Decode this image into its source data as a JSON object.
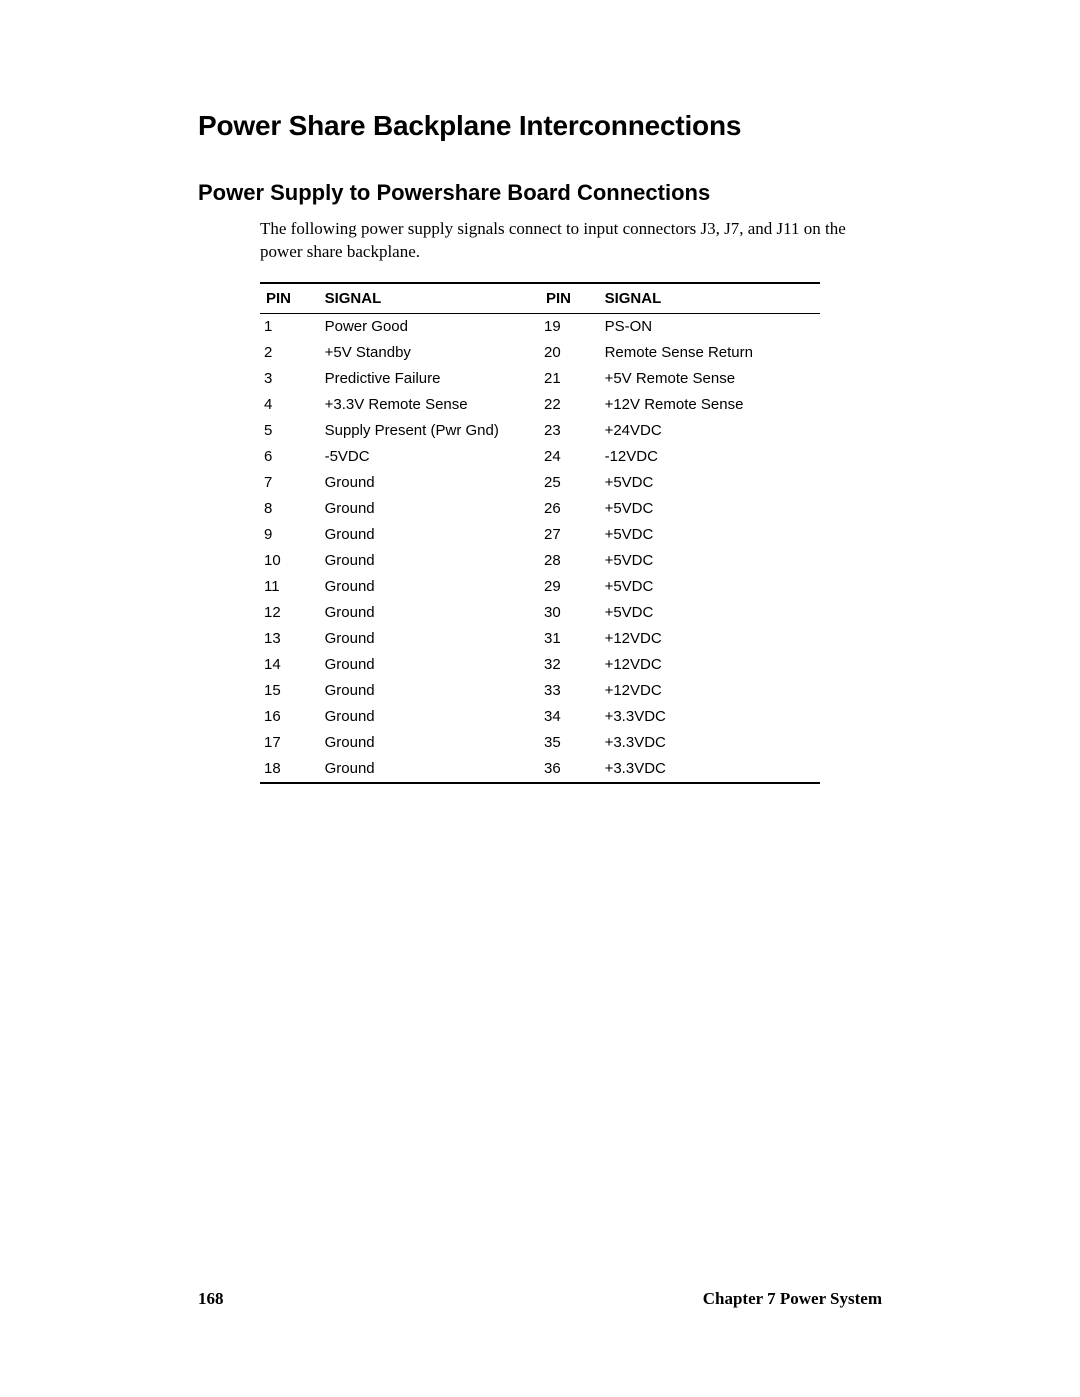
{
  "heading1": "Power Share Backplane Interconnections",
  "heading2": "Power Supply to Powershare Board Connections",
  "body_text": "The following power supply signals connect to input connectors J3, J7, and J11 on the power share backplane.",
  "table": {
    "headers": {
      "pin": "PIN",
      "signal": "SIGNAL",
      "pin2": "PIN",
      "signal2": "SIGNAL"
    },
    "rows": [
      {
        "pin": "1",
        "signal": "Power Good",
        "pin2": "19",
        "signal2": "PS-ON"
      },
      {
        "pin": "2",
        "signal": "+5V Standby",
        "pin2": "20",
        "signal2": "Remote Sense Return"
      },
      {
        "pin": "3",
        "signal": "Predictive Failure",
        "pin2": "21",
        "signal2": "+5V Remote Sense"
      },
      {
        "pin": "4",
        "signal": "+3.3V Remote Sense",
        "pin2": "22",
        "signal2": "+12V Remote Sense"
      },
      {
        "pin": "5",
        "signal": "Supply Present (Pwr Gnd)",
        "pin2": "23",
        "signal2": "+24VDC"
      },
      {
        "pin": "6",
        "signal": "-5VDC",
        "pin2": "24",
        "signal2": "-12VDC"
      },
      {
        "pin": "7",
        "signal": "Ground",
        "pin2": "25",
        "signal2": "+5VDC"
      },
      {
        "pin": "8",
        "signal": "Ground",
        "pin2": "26",
        "signal2": "+5VDC"
      },
      {
        "pin": "9",
        "signal": "Ground",
        "pin2": "27",
        "signal2": "+5VDC"
      },
      {
        "pin": "10",
        "signal": "Ground",
        "pin2": "28",
        "signal2": "+5VDC"
      },
      {
        "pin": "11",
        "signal": "Ground",
        "pin2": "29",
        "signal2": "+5VDC"
      },
      {
        "pin": "12",
        "signal": "Ground",
        "pin2": "30",
        "signal2": "+5VDC"
      },
      {
        "pin": "13",
        "signal": "Ground",
        "pin2": "31",
        "signal2": "+12VDC"
      },
      {
        "pin": "14",
        "signal": "Ground",
        "pin2": "32",
        "signal2": "+12VDC"
      },
      {
        "pin": "15",
        "signal": "Ground",
        "pin2": "33",
        "signal2": "+12VDC"
      },
      {
        "pin": "16",
        "signal": "Ground",
        "pin2": "34",
        "signal2": "+3.3VDC"
      },
      {
        "pin": "17",
        "signal": "Ground",
        "pin2": "35",
        "signal2": "+3.3VDC"
      },
      {
        "pin": "18",
        "signal": "Ground",
        "pin2": "36",
        "signal2": "+3.3VDC"
      }
    ]
  },
  "footer": {
    "page_number": "168",
    "chapter_label": "Chapter 7  Power System"
  }
}
